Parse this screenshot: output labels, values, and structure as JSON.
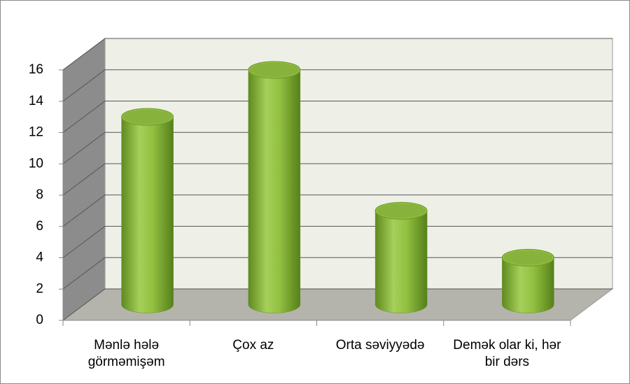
{
  "chart_data": {
    "type": "bar",
    "categories": [
      "Mənlə hələ görməmişəm",
      "Çox az",
      "Orta səviyyədə",
      "Demək olar ki, hər bir dərs"
    ],
    "values": [
      12,
      15,
      6,
      3
    ],
    "color": "#92c040",
    "ylim": [
      0,
      16
    ],
    "yticks": [
      0,
      2,
      4,
      6,
      8,
      10,
      12,
      14,
      16
    ],
    "grid": true
  }
}
